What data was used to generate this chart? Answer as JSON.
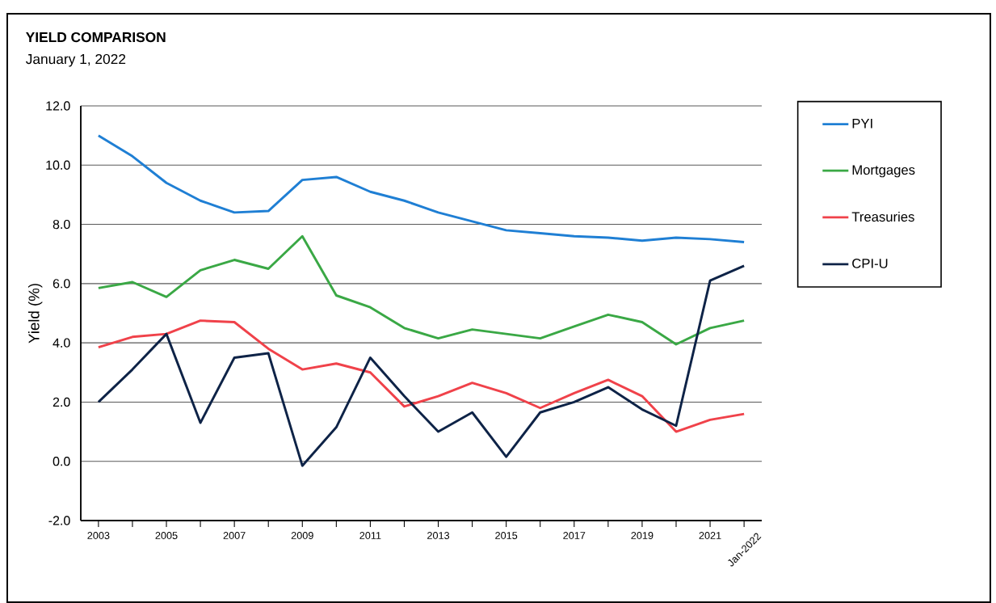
{
  "chart_data": {
    "type": "line",
    "title": "YIELD COMPARISON",
    "subtitle": "January 1, 2022",
    "ylabel": "Yield (%)",
    "categories": [
      "2003",
      null,
      "2005",
      null,
      "2007",
      null,
      "2009",
      null,
      "2011",
      null,
      "2013",
      null,
      "2015",
      null,
      "2017",
      null,
      "2019",
      null,
      "2021",
      "Jan-2022"
    ],
    "series": [
      {
        "name": "PYI",
        "color": "#1f7fd4",
        "values": [
          11.0,
          10.3,
          9.4,
          8.8,
          8.4,
          8.45,
          9.5,
          9.6,
          9.1,
          8.8,
          8.4,
          8.1,
          7.8,
          7.7,
          7.6,
          7.55,
          7.45,
          7.55,
          7.5,
          7.4
        ]
      },
      {
        "name": "Mortgages",
        "color": "#3aa845",
        "values": [
          5.85,
          6.05,
          5.55,
          6.45,
          6.8,
          6.5,
          7.6,
          5.6,
          5.2,
          4.5,
          4.15,
          4.45,
          4.3,
          4.15,
          4.55,
          4.95,
          4.7,
          3.95,
          4.5,
          4.75
        ]
      },
      {
        "name": "Treasuries",
        "color": "#f0424a",
        "values": [
          3.85,
          4.2,
          4.3,
          4.75,
          4.7,
          3.8,
          3.1,
          3.3,
          3.0,
          1.85,
          2.2,
          2.65,
          2.3,
          1.8,
          2.3,
          2.75,
          2.2,
          1.0,
          1.4,
          1.6
        ]
      },
      {
        "name": "CPI-U",
        "color": "#0e2347",
        "values": [
          2.0,
          3.1,
          4.3,
          1.3,
          3.5,
          3.65,
          -0.15,
          1.15,
          3.5,
          2.2,
          1.0,
          1.65,
          0.15,
          1.65,
          2.0,
          2.5,
          1.75,
          1.2,
          6.1,
          6.6
        ]
      }
    ],
    "ylim": [
      -2,
      12
    ],
    "yticks": [
      {
        "value": -2,
        "label": "-2.0"
      },
      {
        "value": 0,
        "label": "0.0"
      },
      {
        "value": 2,
        "label": "2.0"
      },
      {
        "value": 4,
        "label": "4.0"
      },
      {
        "value": 6,
        "label": "6.0"
      },
      {
        "value": 8,
        "label": "8.0"
      },
      {
        "value": 10,
        "label": "10.0"
      },
      {
        "value": 12,
        "label": "12.0"
      }
    ],
    "grid": "y",
    "legend": "right"
  }
}
